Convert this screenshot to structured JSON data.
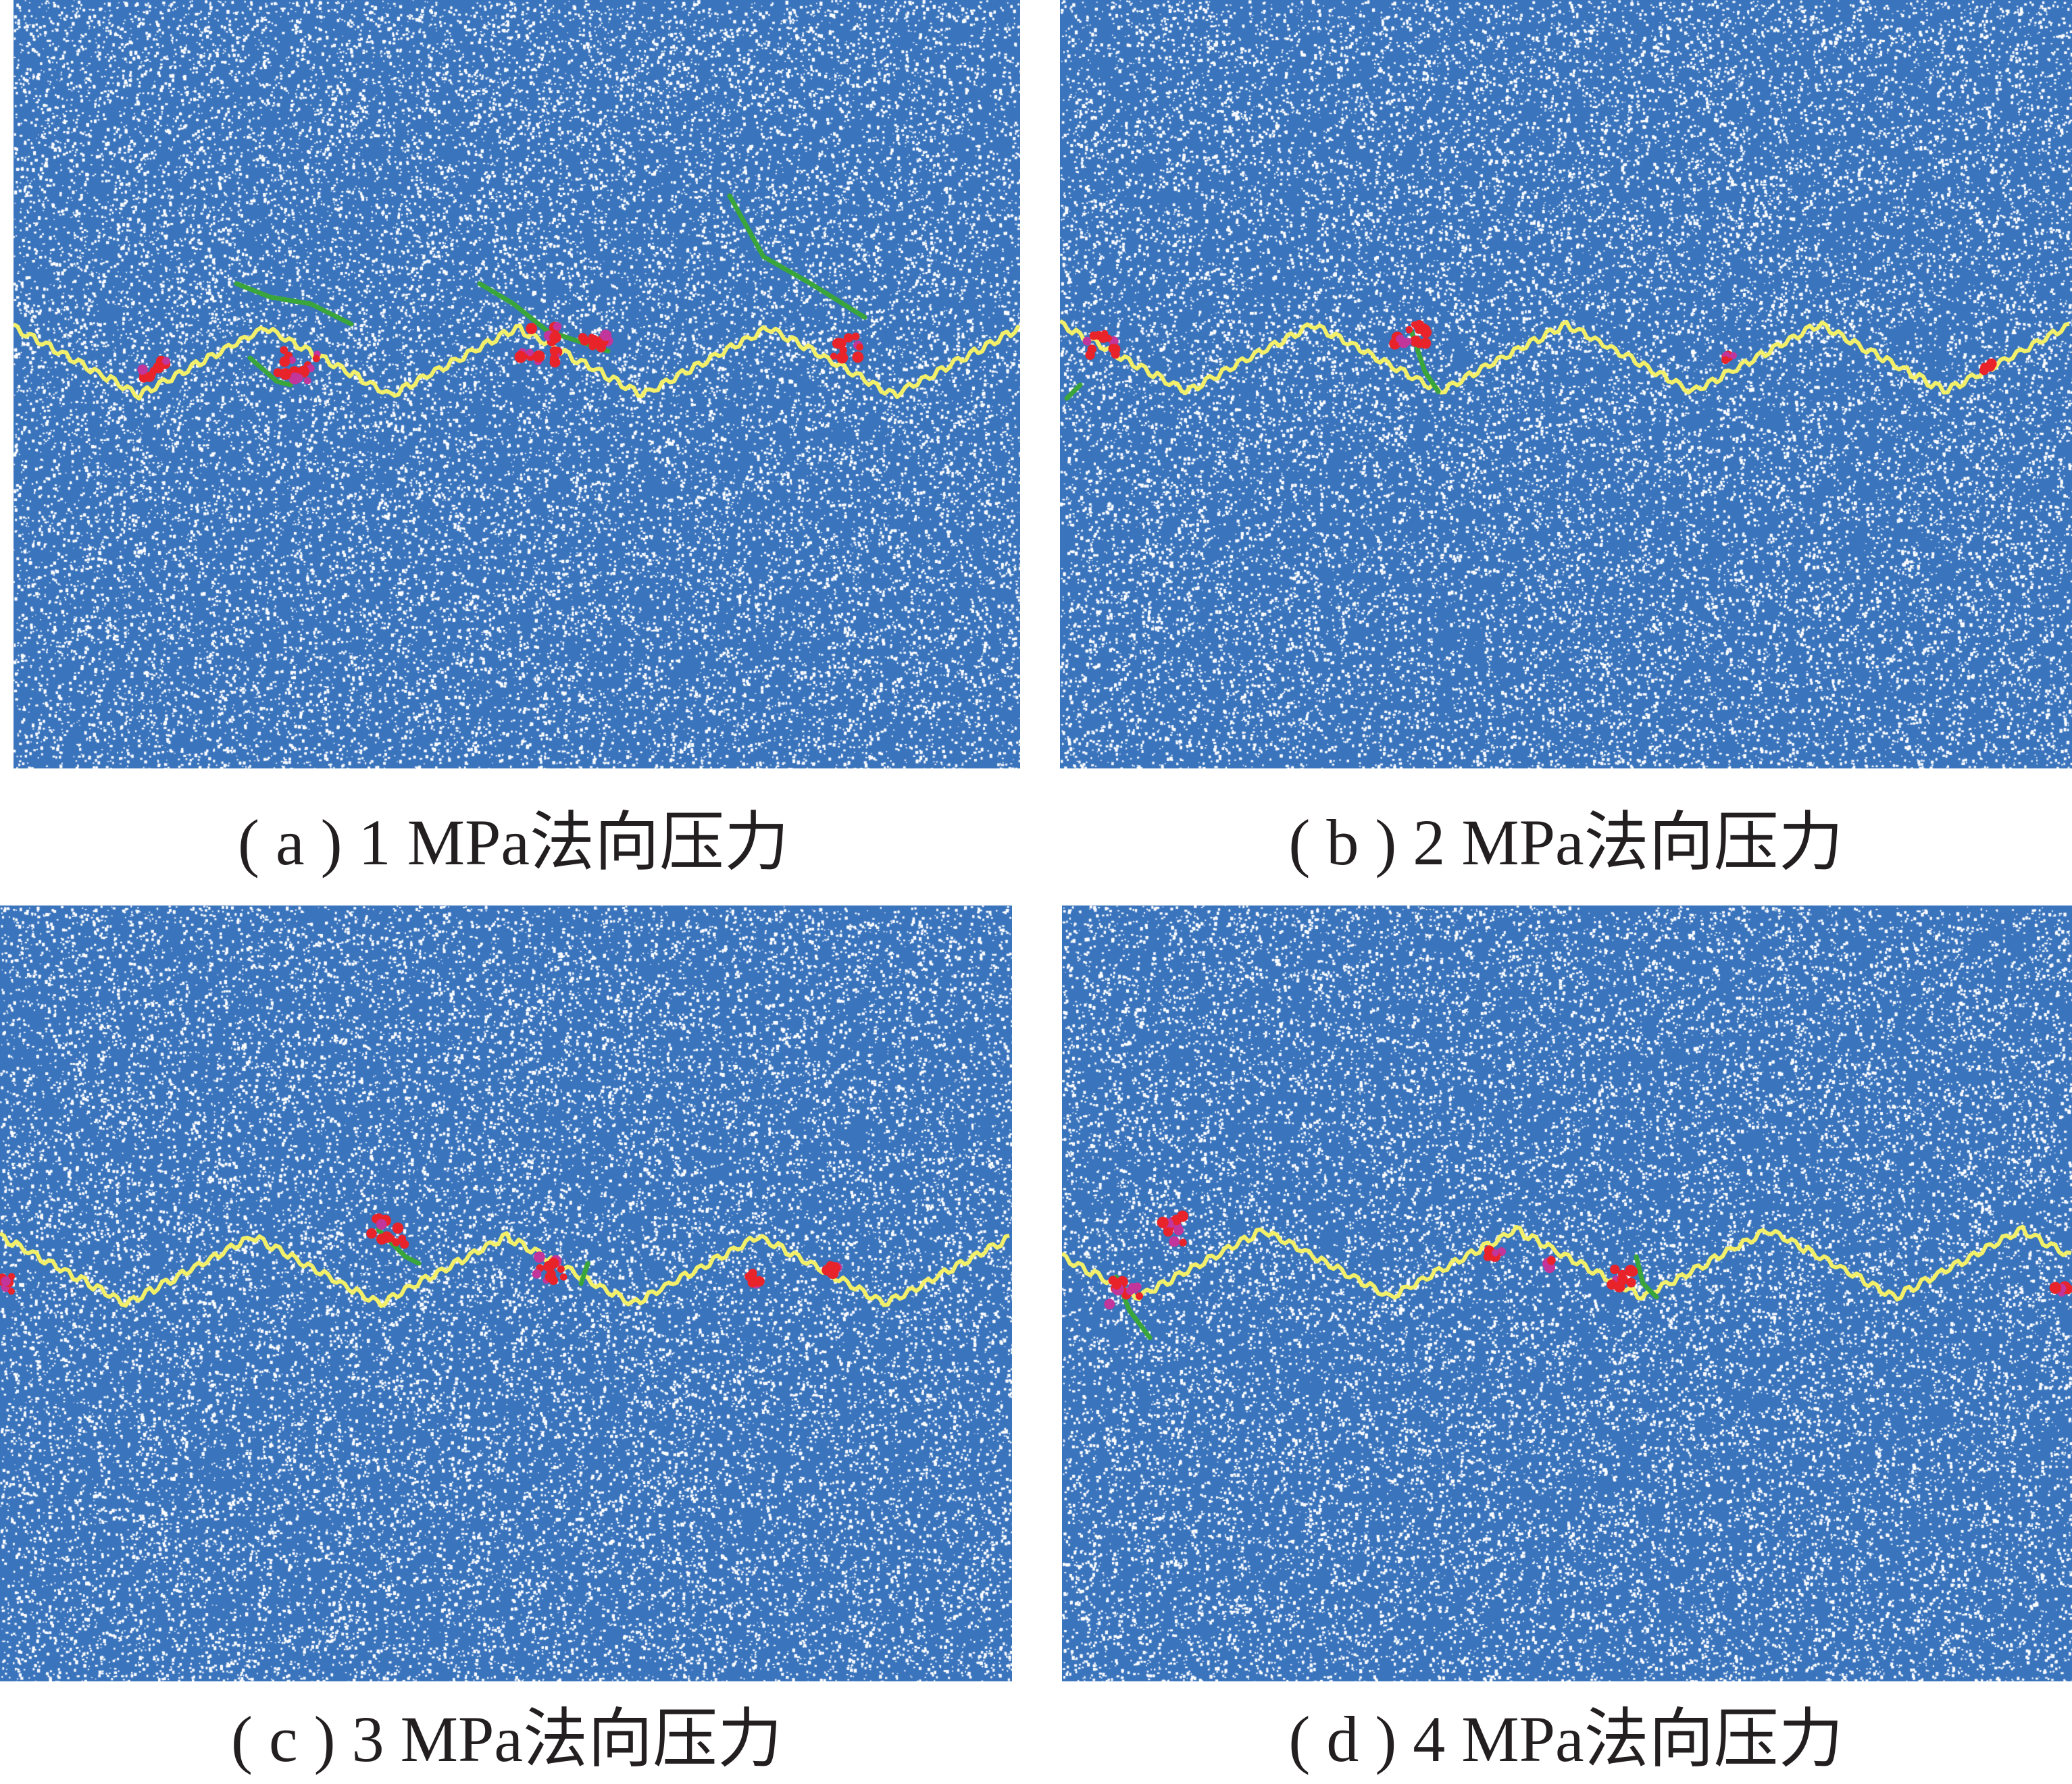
{
  "panels": [
    {
      "id": "a",
      "caption": "( a ) 1 MPa法向压力",
      "pressure_mpa": 1
    },
    {
      "id": "b",
      "caption": "( b ) 2 MPa法向压力",
      "pressure_mpa": 2
    },
    {
      "id": "c",
      "caption": "( c ) 3 MPa法向压力",
      "pressure_mpa": 3
    },
    {
      "id": "d",
      "caption": "( d ) 4 MPa法向压力",
      "pressure_mpa": 4
    }
  ],
  "colors": {
    "particle_field": "#3a74bd",
    "pores": "#ffffff",
    "joint_contact": "#f2ef6a",
    "tensile_crack": "#3aa53a",
    "shear_crack": "#e8232a",
    "magenta_crack": "#c2359a"
  }
}
